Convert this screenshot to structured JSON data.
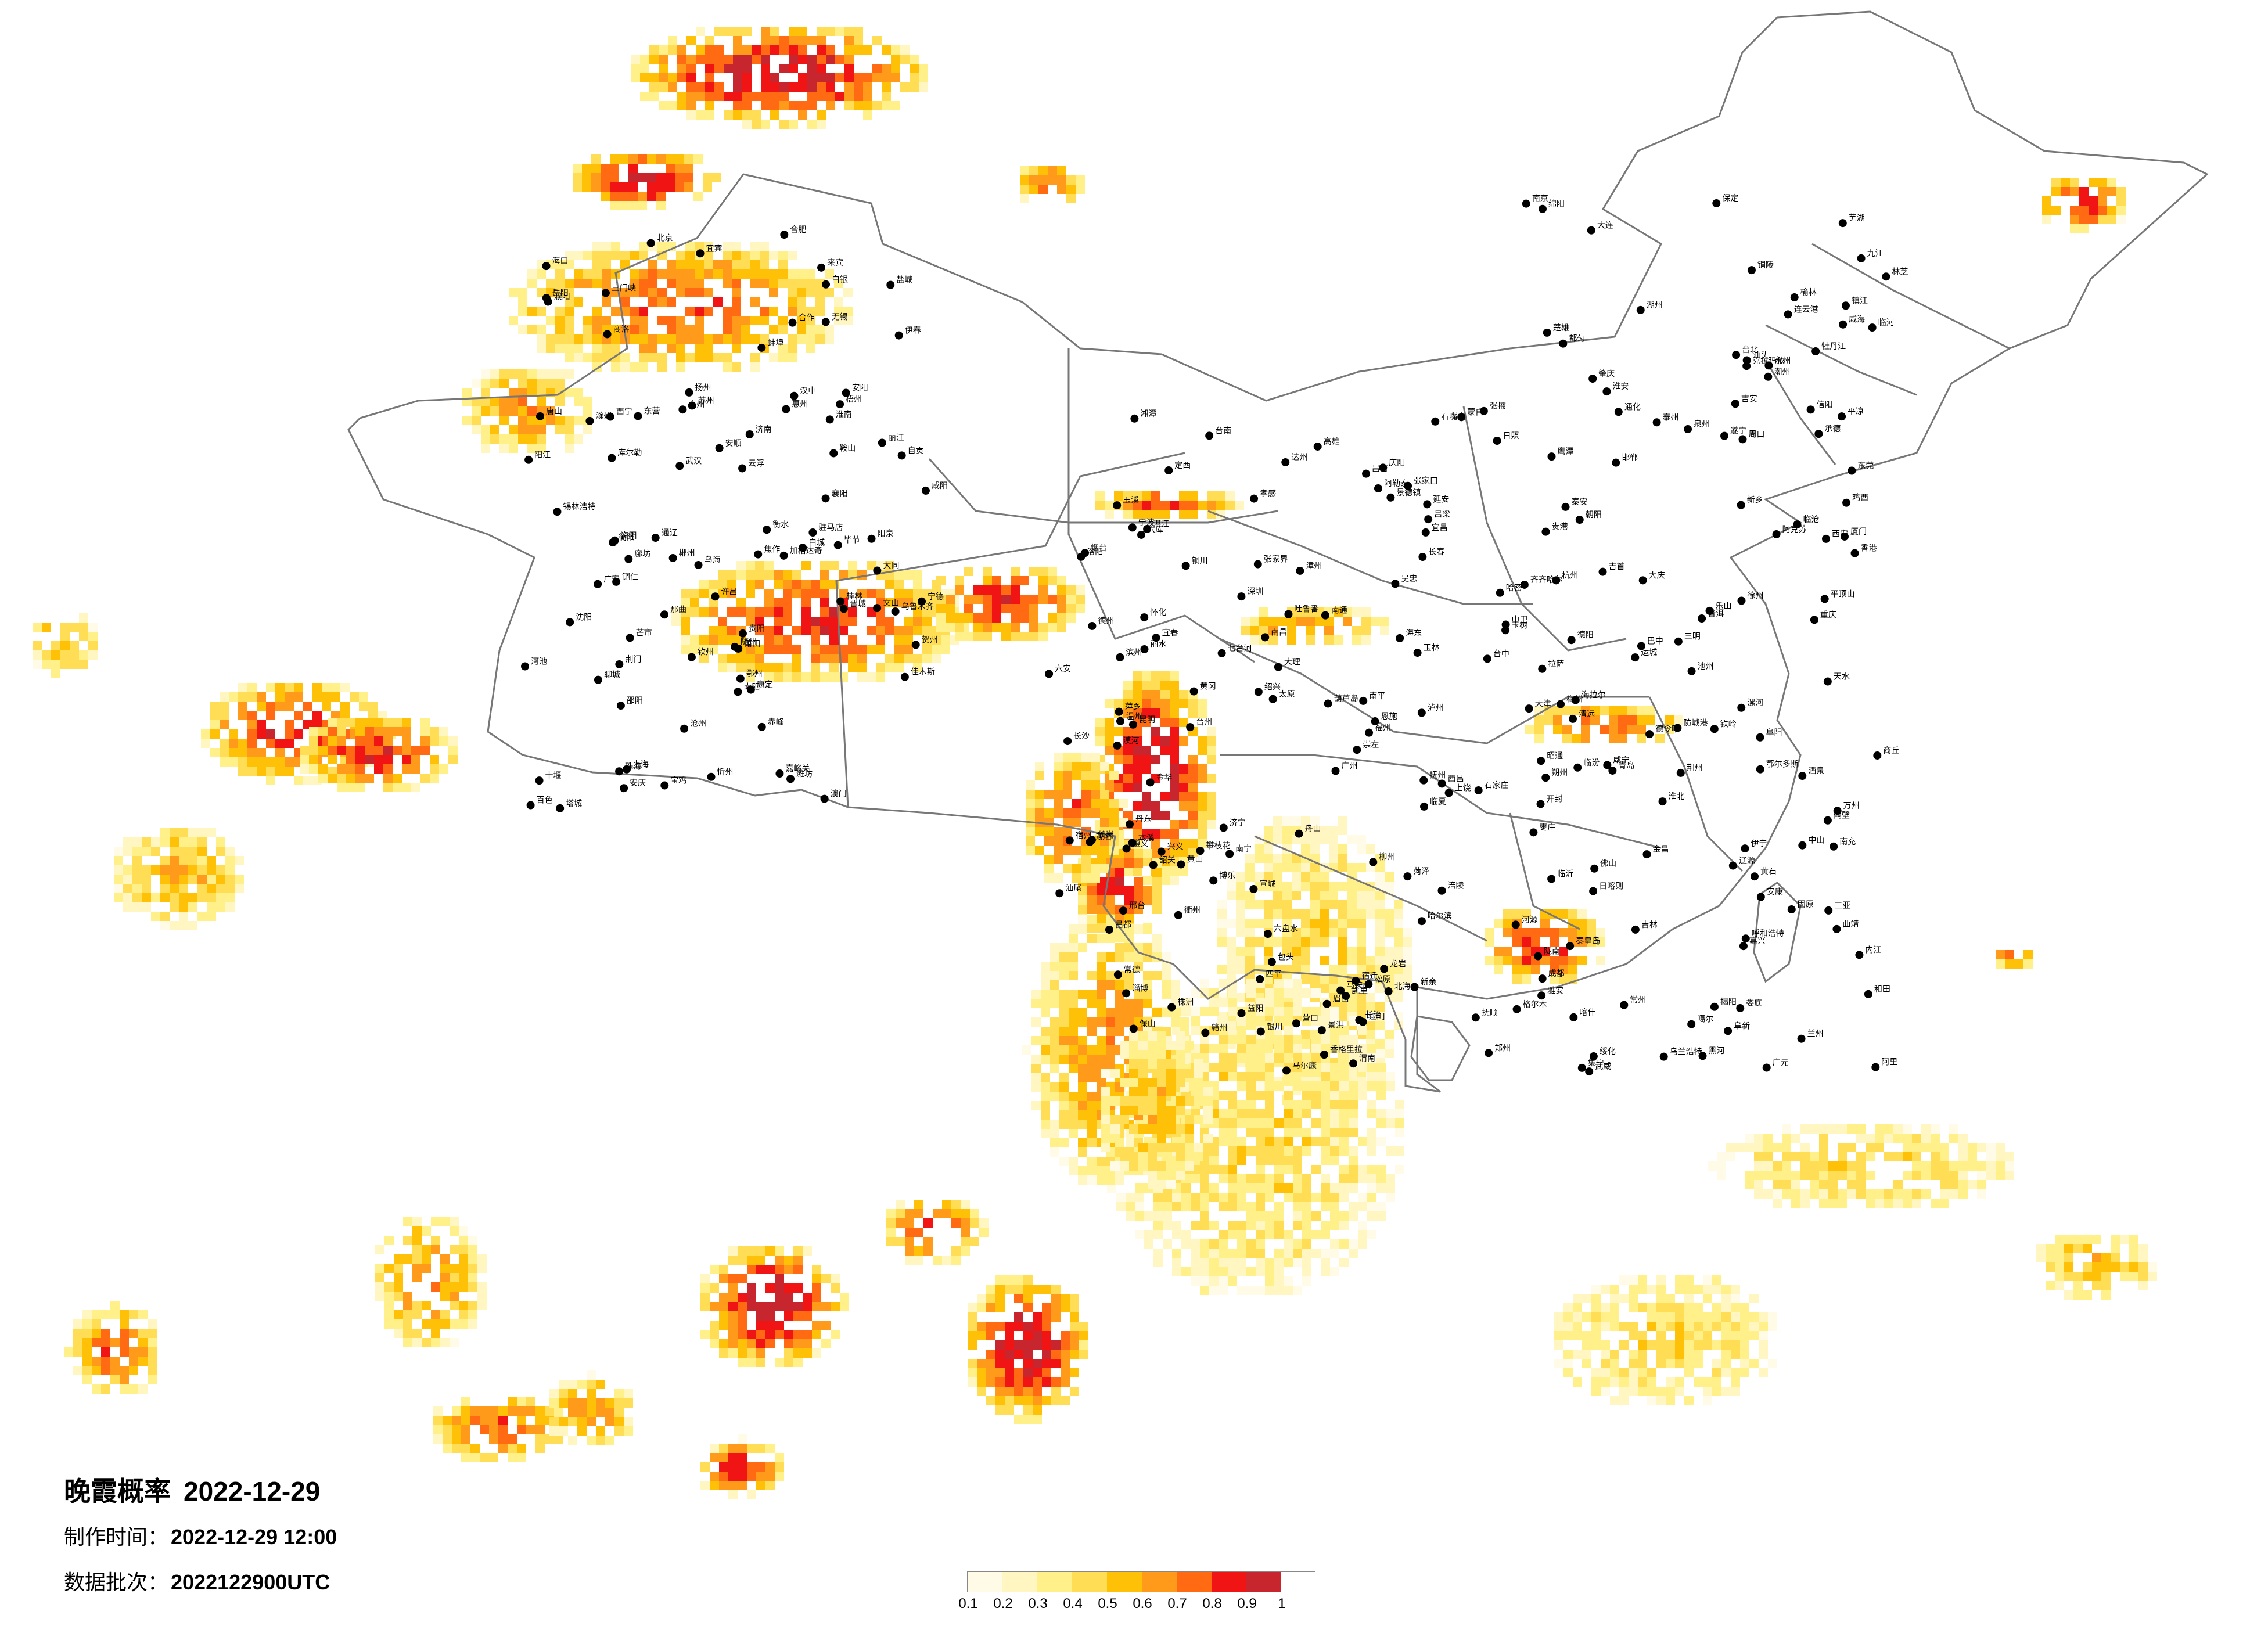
{
  "title": "晚霞概率",
  "date": "2022-12-29",
  "made_time_label": "制作时间：",
  "made_time_value": "2022-12-29 12:00",
  "batch_label": "数据批次：",
  "batch_value": "2022122900UTC",
  "legend": {
    "ticks": [
      "0.1",
      "0.2",
      "0.3",
      "0.4",
      "0.5",
      "0.6",
      "0.7",
      "0.8",
      "0.9",
      "1"
    ],
    "colors": [
      "#fffbe6",
      "#fff6c2",
      "#fff08a",
      "#ffdd55",
      "#ffc107",
      "#ff9a1a",
      "#ff6a13",
      "#f01414",
      "#c8262f"
    ]
  },
  "cities": [
    "漠河",
    "加格达奇",
    "海拉尔",
    "黑河",
    "伊春",
    "鹤岗",
    "佳木斯",
    "齐齐哈尔",
    "大庆",
    "绥化",
    "哈尔滨",
    "七台河",
    "鸡西",
    "牡丹江",
    "乌兰浩特",
    "白城",
    "松原",
    "吉林",
    "长春",
    "四平",
    "通化",
    "辽源",
    "锡林浩特",
    "通辽",
    "赤峰",
    "沈阳",
    "阜新",
    "铁岭",
    "抚顺",
    "本溪",
    "丹东",
    "鞍山",
    "营口",
    "朝阳",
    "葫芦岛",
    "大连",
    "承德",
    "张家口",
    "北京",
    "唐山",
    "天津",
    "秦皇岛",
    "廊坊",
    "保定",
    "石家庄",
    "沧州",
    "衡水",
    "邢台",
    "邯郸",
    "呼和浩特",
    "包头",
    "鄂尔多斯",
    "乌海",
    "临河",
    "集宁",
    "大同",
    "朔州",
    "忻州",
    "太原",
    "阳泉",
    "长治",
    "晋城",
    "吕梁",
    "临汾",
    "运城",
    "济南",
    "青岛",
    "烟台",
    "威海",
    "潍坊",
    "淄博",
    "东营",
    "滨州",
    "德州",
    "聊城",
    "泰安",
    "济宁",
    "临沂",
    "枣庄",
    "日照",
    "菏泽",
    "郑州",
    "开封",
    "洛阳",
    "平顶山",
    "安阳",
    "鹤壁",
    "新乡",
    "焦作",
    "濮阳",
    "许昌",
    "漯河",
    "三门峡",
    "南阳",
    "商丘",
    "信阳",
    "周口",
    "驻马店",
    "西安",
    "铜川",
    "宝鸡",
    "咸阳",
    "渭南",
    "延安",
    "汉中",
    "榆林",
    "安康",
    "商洛",
    "兰州",
    "嘉峪关",
    "金昌",
    "白银",
    "天水",
    "武威",
    "张掖",
    "平凉",
    "酒泉",
    "庆阳",
    "定西",
    "陇南",
    "临夏",
    "合作",
    "银川",
    "石嘴山",
    "吴忠",
    "固原",
    "中卫",
    "西宁",
    "海东",
    "格尔木",
    "德令哈",
    "玉树",
    "乌鲁木齐",
    "克拉玛依",
    "吐鲁番",
    "哈密",
    "昌吉",
    "博乐",
    "伊宁",
    "塔城",
    "阿勒泰",
    "库尔勒",
    "阿克苏",
    "喀什",
    "和田",
    "拉萨",
    "日喀则",
    "昌都",
    "林芝",
    "那曲",
    "阿里",
    "噶尔",
    "成都",
    "绵阳",
    "德阳",
    "广元",
    "遂宁",
    "内江",
    "乐山",
    "南充",
    "宜宾",
    "广安",
    "达州",
    "雅安",
    "巴中",
    "资阳",
    "眉山",
    "自贡",
    "泸州",
    "攀枝花",
    "西昌",
    "马尔康",
    "康定",
    "重庆",
    "万州",
    "涪陵",
    "贵阳",
    "遵义",
    "六盘水",
    "安顺",
    "铜仁",
    "毕节",
    "兴义",
    "凯里",
    "都匀",
    "昆明",
    "曲靖",
    "玉溪",
    "保山",
    "昭通",
    "丽江",
    "普洱",
    "临沧",
    "楚雄",
    "大理",
    "蒙自",
    "文山",
    "景洪",
    "芒市",
    "六库",
    "香格里拉",
    "武汉",
    "黄石",
    "十堰",
    "宜昌",
    "襄阳",
    "鄂州",
    "荆门",
    "孝感",
    "荆州",
    "黄冈",
    "咸宁",
    "随州",
    "恩施",
    "长沙",
    "株洲",
    "湘潭",
    "衡阳",
    "邵阳",
    "岳阳",
    "常德",
    "张家界",
    "益阳",
    "郴州",
    "永州",
    "怀化",
    "娄底",
    "吉首",
    "南昌",
    "景德镇",
    "萍乡",
    "九江",
    "新余",
    "鹰潭",
    "赣州",
    "吉安",
    "宜春",
    "抚州",
    "上饶",
    "合肥",
    "芜湖",
    "蚌埠",
    "淮南",
    "马鞍山",
    "淮北",
    "铜陵",
    "安庆",
    "黄山",
    "滁州",
    "阜阳",
    "宿州",
    "六安",
    "亳州",
    "池州",
    "宣城",
    "南京",
    "无锡",
    "徐州",
    "常州",
    "苏州",
    "南通",
    "连云港",
    "淮安",
    "盐城",
    "扬州",
    "镇江",
    "泰州",
    "宿迁",
    "上海",
    "杭州",
    "宁波",
    "温州",
    "嘉兴",
    "湖州",
    "绍兴",
    "金华",
    "衢州",
    "舟山",
    "台州",
    "丽水",
    "福州",
    "厦门",
    "莆田",
    "三明",
    "泉州",
    "漳州",
    "南平",
    "龙岩",
    "宁德",
    "广州",
    "深圳",
    "珠海",
    "汕头",
    "韶关",
    "佛山",
    "江门",
    "湛江",
    "茂名",
    "肇庆",
    "惠州",
    "梅州",
    "汕尾",
    "河源",
    "阳江",
    "清远",
    "东莞",
    "中山",
    "潮州",
    "揭阳",
    "云浮",
    "南宁",
    "柳州",
    "桂林",
    "梧州",
    "北海",
    "防城港",
    "钦州",
    "贵港",
    "玉林",
    "百色",
    "贺州",
    "河池",
    "来宾",
    "崇左",
    "海口",
    "三亚",
    "台北",
    "台中",
    "台南",
    "高雄",
    "香港",
    "澳门"
  ]
}
